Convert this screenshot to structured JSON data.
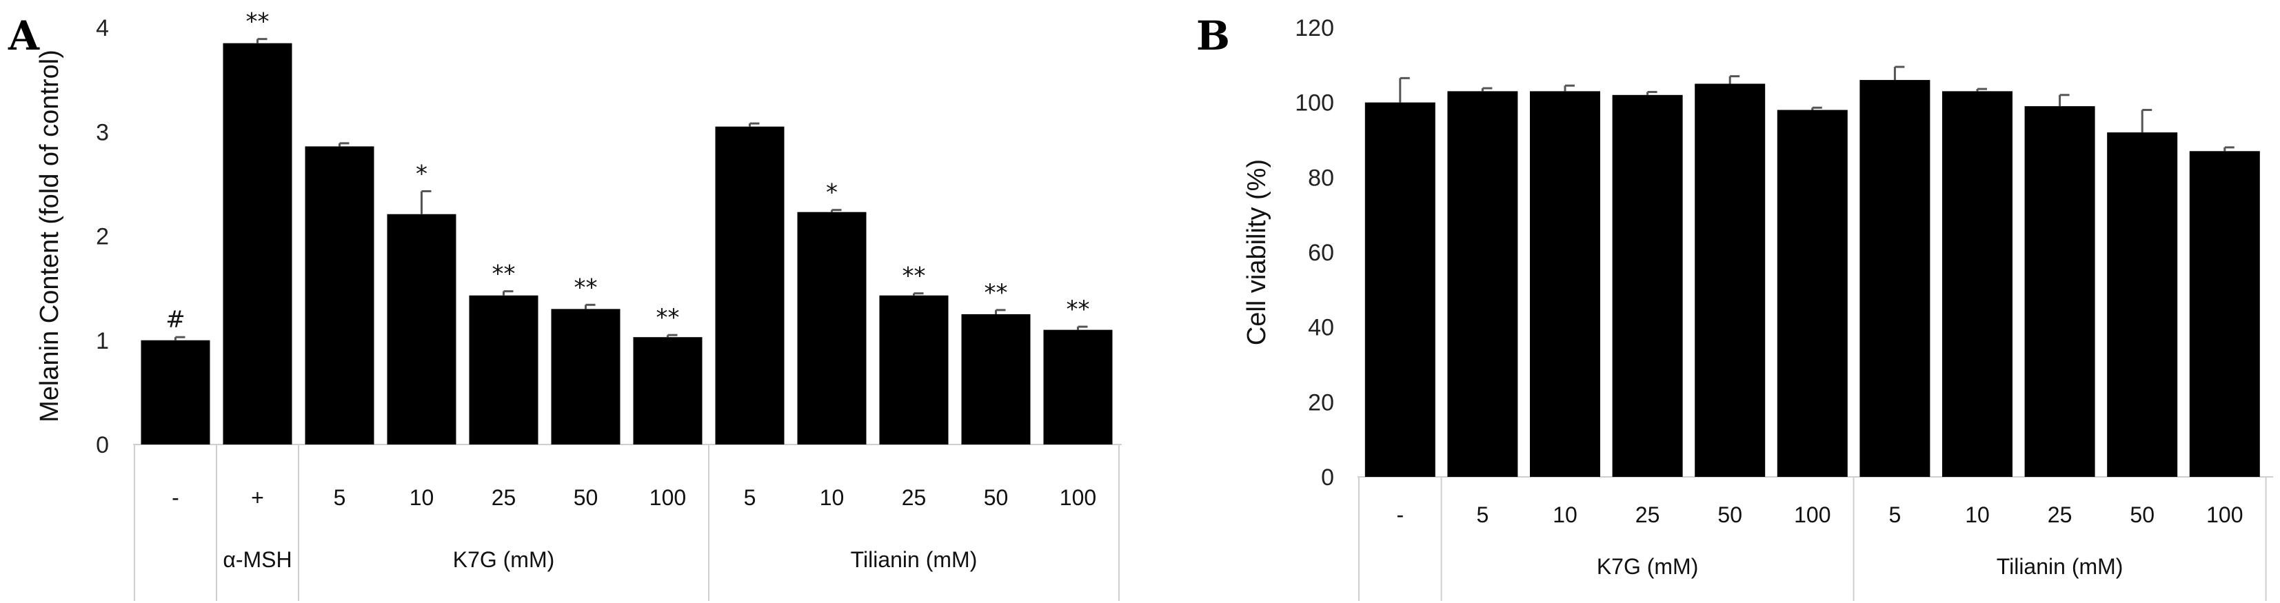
{
  "chart_data": [
    {
      "panel": "A",
      "type": "bar",
      "ylabel": "Melanin Content (fold of control)",
      "ylim": [
        0,
        4
      ],
      "yticks": [
        "0",
        "1",
        "2",
        "3",
        "4"
      ],
      "categories": [
        "-",
        "+",
        "5",
        "10",
        "25",
        "50",
        "100",
        "5",
        "10",
        "25",
        "50",
        "100"
      ],
      "values": [
        1.0,
        3.85,
        2.86,
        2.21,
        1.43,
        1.3,
        1.03,
        3.05,
        2.23,
        1.43,
        1.25,
        1.1
      ],
      "errors": [
        0.03,
        0.04,
        0.03,
        0.22,
        0.04,
        0.04,
        0.02,
        0.03,
        0.02,
        0.02,
        0.04,
        0.03
      ],
      "annotations": [
        "#",
        "**",
        "",
        "*",
        "**",
        "**",
        "**",
        "",
        "*",
        "**",
        "**",
        "**"
      ],
      "groups": [
        {
          "label": "α-MSH",
          "start": 1,
          "end": 1
        },
        {
          "label": "K7G (mM)",
          "start": 2,
          "end": 6
        },
        {
          "label": "Tilianin (mM)",
          "start": 7,
          "end": 11
        }
      ]
    },
    {
      "panel": "B",
      "type": "bar",
      "ylabel": "Cell viability (%)",
      "ylim": [
        0,
        120
      ],
      "yticks": [
        "0",
        "20",
        "40",
        "60",
        "80",
        "100",
        "120"
      ],
      "categories": [
        "-",
        "5",
        "10",
        "25",
        "50",
        "100",
        "5",
        "10",
        "25",
        "50",
        "100"
      ],
      "values": [
        100,
        103,
        103,
        102,
        105,
        98,
        106,
        103,
        99,
        92,
        87
      ],
      "errors": [
        6.5,
        0.8,
        1.5,
        0.8,
        2.0,
        0.6,
        3.5,
        0.6,
        3.0,
        6.0,
        1.0
      ],
      "annotations": [
        "",
        "",
        "",
        "",
        "",
        "",
        "",
        "",
        "",
        "",
        ""
      ],
      "groups": [
        {
          "label": "K7G (mM)",
          "start": 1,
          "end": 5
        },
        {
          "label": "Tilianin (mM)",
          "start": 6,
          "end": 10
        }
      ]
    }
  ]
}
